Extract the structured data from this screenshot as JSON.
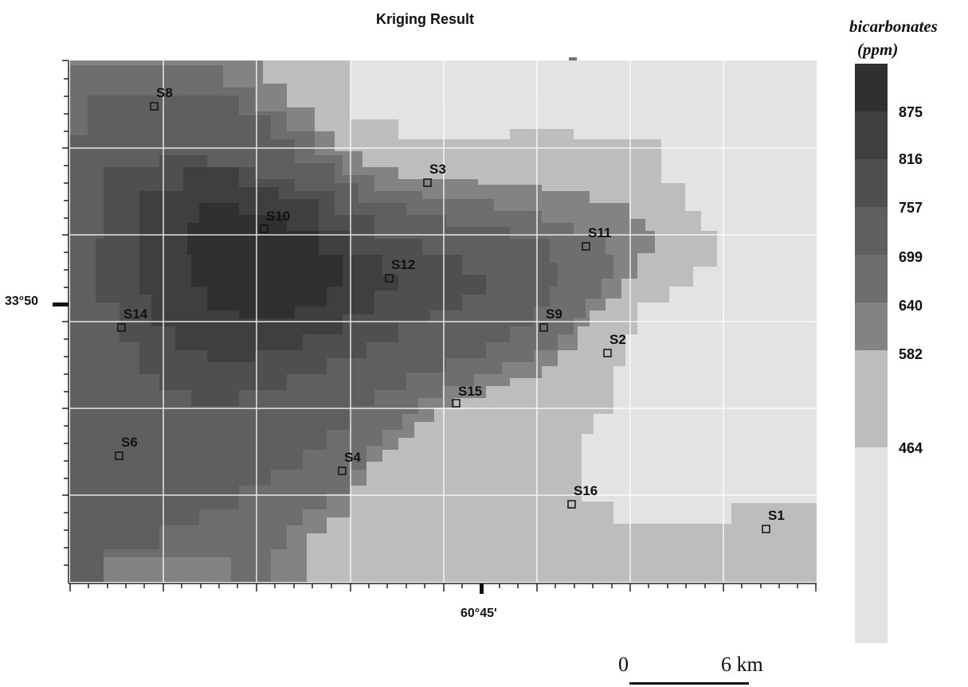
{
  "title": "Kriging Result",
  "axes": {
    "lat_label": "33°50",
    "lon_label": "60°45'"
  },
  "legend": {
    "title": "bicarbonates",
    "unit": "(ppm)",
    "ticks": [
      "875",
      "816",
      "757",
      "699",
      "640",
      "582",
      "464"
    ],
    "swatch_colors": [
      "#303030",
      "#3f3f3f",
      "#4f4f4f",
      "#5f5f5f",
      "#6e6e6e",
      "#838383",
      "#bdbdbd",
      "#e3e3e3"
    ]
  },
  "scale_bar": {
    "start": "0",
    "end": "6 km"
  },
  "stations": [
    {
      "id": "S8"
    },
    {
      "id": "S3"
    },
    {
      "id": "S10"
    },
    {
      "id": "S11"
    },
    {
      "id": "S12"
    },
    {
      "id": "S14"
    },
    {
      "id": "S9"
    },
    {
      "id": "S2"
    },
    {
      "id": "S15"
    },
    {
      "id": "S6"
    },
    {
      "id": "S4"
    },
    {
      "id": "S16"
    },
    {
      "id": "S1"
    }
  ]
}
